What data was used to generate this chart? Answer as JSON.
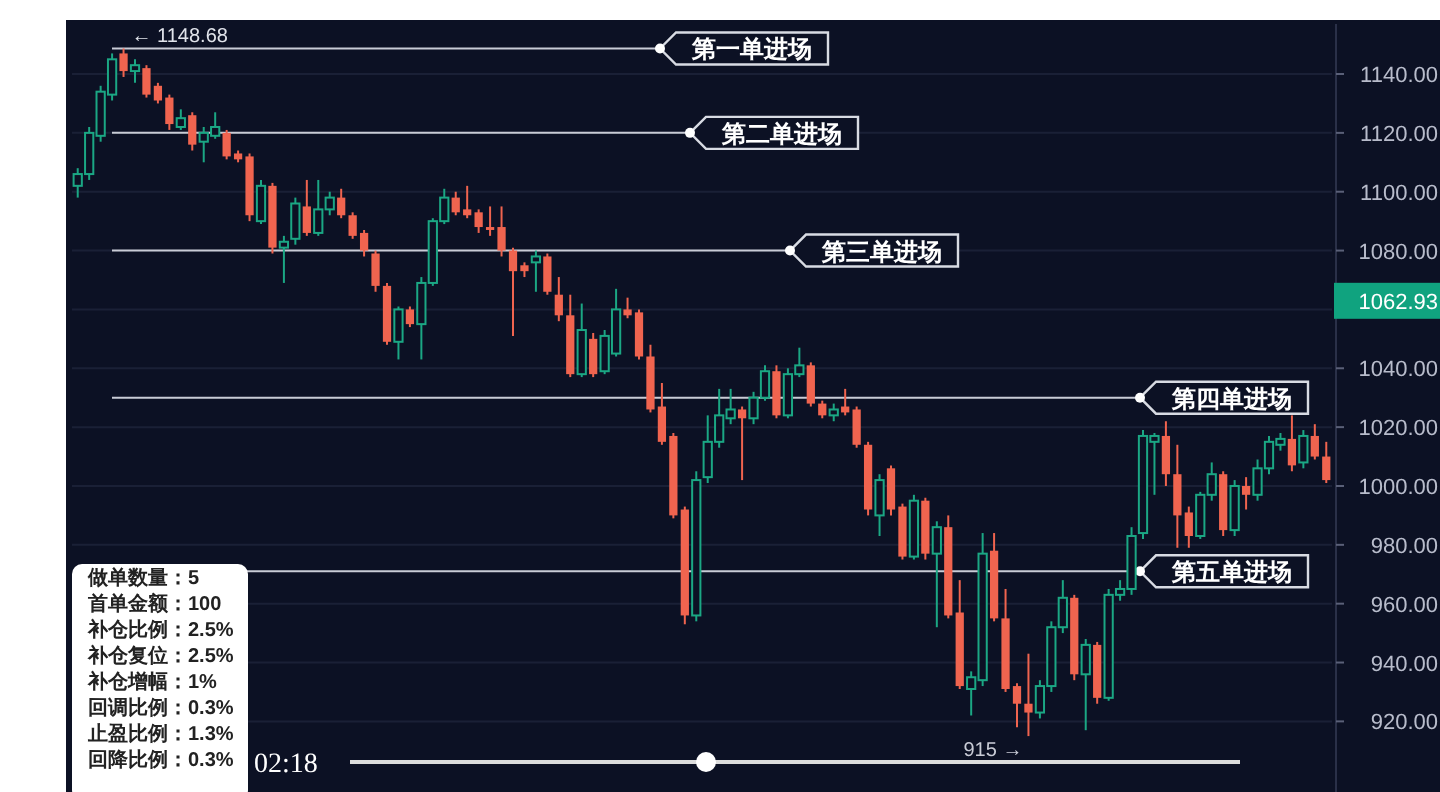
{
  "chart_data": {
    "type": "candlestick",
    "categories": [
      null,
      null,
      null,
      null,
      null,
      null,
      null,
      null,
      null,
      null,
      null,
      null,
      null,
      null,
      null,
      null,
      null,
      null,
      null,
      null,
      null,
      null,
      null,
      null,
      null,
      null,
      null,
      null,
      null,
      null,
      null,
      null,
      null,
      null,
      null,
      null,
      null,
      null,
      null,
      null,
      null,
      null,
      null,
      null,
      null,
      null,
      null,
      null,
      null,
      null,
      null,
      null,
      null,
      null,
      null,
      null,
      null,
      null,
      null,
      null,
      null,
      null,
      null,
      null,
      null,
      null,
      null,
      null,
      null,
      null,
      null,
      null,
      null,
      null,
      null,
      null,
      null,
      null,
      null,
      null,
      null,
      null,
      null,
      null,
      null,
      null,
      null,
      null,
      null,
      null,
      null,
      null,
      null,
      null,
      null,
      null,
      null,
      null,
      null,
      null,
      null,
      null,
      null,
      null,
      null,
      null,
      null,
      null,
      null,
      null
    ],
    "ohlc": [
      [
        1102,
        1108,
        1098,
        1106
      ],
      [
        1106,
        1122,
        1104,
        1120
      ],
      [
        1119,
        1136,
        1117,
        1134
      ],
      [
        1133,
        1147,
        1131,
        1145
      ],
      [
        1147,
        1148.68,
        1139,
        1141
      ],
      [
        1141,
        1145,
        1137,
        1143
      ],
      [
        1142,
        1143,
        1132,
        1133
      ],
      [
        1136,
        1137,
        1130,
        1131
      ],
      [
        1132,
        1133,
        1121,
        1123
      ],
      [
        1122,
        1128,
        1121,
        1125
      ],
      [
        1126,
        1127,
        1114,
        1116
      ],
      [
        1117,
        1122,
        1110,
        1120
      ],
      [
        1119,
        1127,
        1118,
        1122
      ],
      [
        1120,
        1121,
        1111,
        1112
      ],
      [
        1113,
        1114,
        1110,
        1111
      ],
      [
        1112,
        1113,
        1090,
        1092
      ],
      [
        1090,
        1104,
        1089,
        1102
      ],
      [
        1102,
        1103,
        1079,
        1081
      ],
      [
        1081,
        1085,
        1069,
        1083
      ],
      [
        1084,
        1098,
        1082,
        1096
      ],
      [
        1095,
        1104,
        1085,
        1086
      ],
      [
        1086,
        1104,
        1085,
        1094
      ],
      [
        1094,
        1100,
        1092,
        1098
      ],
      [
        1098,
        1101,
        1091,
        1092
      ],
      [
        1092,
        1093,
        1084,
        1085
      ],
      [
        1086,
        1087,
        1078,
        1080
      ],
      [
        1079,
        1080,
        1066,
        1068
      ],
      [
        1068,
        1069,
        1048,
        1049
      ],
      [
        1049,
        1061,
        1043,
        1060
      ],
      [
        1060,
        1061,
        1054,
        1055
      ],
      [
        1055,
        1071,
        1043,
        1069
      ],
      [
        1069,
        1091,
        1068,
        1090
      ],
      [
        1090,
        1101,
        1089,
        1098
      ],
      [
        1098,
        1100,
        1092,
        1093
      ],
      [
        1094,
        1102,
        1091,
        1092
      ],
      [
        1093,
        1094,
        1086,
        1088
      ],
      [
        1088,
        1095,
        1085,
        1087
      ],
      [
        1088,
        1095,
        1078,
        1080
      ],
      [
        1080,
        1081,
        1051,
        1073
      ],
      [
        1075,
        1076,
        1071,
        1073
      ],
      [
        1076,
        1080,
        1066,
        1078
      ],
      [
        1078,
        1079,
        1065,
        1066
      ],
      [
        1065,
        1071,
        1056,
        1058
      ],
      [
        1058,
        1065,
        1037,
        1038
      ],
      [
        1038,
        1062,
        1037,
        1053
      ],
      [
        1050,
        1052,
        1037,
        1038
      ],
      [
        1039,
        1053,
        1038,
        1051
      ],
      [
        1045,
        1067,
        1044,
        1060
      ],
      [
        1060,
        1064,
        1057,
        1058
      ],
      [
        1059,
        1060,
        1043,
        1044
      ],
      [
        1044,
        1048,
        1025,
        1026
      ],
      [
        1027,
        1035,
        1014,
        1015
      ],
      [
        1017,
        1018,
        989,
        990
      ],
      [
        992,
        993,
        953,
        956
      ],
      [
        956,
        1005,
        954,
        1002
      ],
      [
        1003,
        1024,
        1001,
        1015
      ],
      [
        1015,
        1033,
        1013,
        1024
      ],
      [
        1023,
        1033,
        1021,
        1026
      ],
      [
        1026,
        1027,
        1002,
        1023
      ],
      [
        1023,
        1032,
        1021,
        1030
      ],
      [
        1030,
        1041,
        1029,
        1039
      ],
      [
        1039,
        1041,
        1023,
        1024
      ],
      [
        1024,
        1040,
        1023,
        1038
      ],
      [
        1038,
        1047,
        1037,
        1041
      ],
      [
        1041,
        1042,
        1027,
        1028
      ],
      [
        1028,
        1029,
        1023,
        1024
      ],
      [
        1024,
        1028,
        1022,
        1026
      ],
      [
        1027,
        1033,
        1024,
        1025
      ],
      [
        1026,
        1027,
        1013,
        1014
      ],
      [
        1014,
        1015,
        990,
        992
      ],
      [
        990,
        1004,
        983,
        1002
      ],
      [
        1006,
        1007,
        990,
        992
      ],
      [
        993,
        994,
        975,
        976
      ],
      [
        976,
        997,
        975,
        995
      ],
      [
        995,
        996,
        975,
        977
      ],
      [
        977,
        988,
        952,
        986
      ],
      [
        986,
        990,
        955,
        956
      ],
      [
        957,
        968,
        931,
        932
      ],
      [
        931,
        937,
        922,
        935
      ],
      [
        934,
        984,
        932,
        977
      ],
      [
        978,
        984,
        954,
        955
      ],
      [
        955,
        965,
        930,
        931
      ],
      [
        932,
        933,
        918,
        926
      ],
      [
        926,
        943,
        915,
        923
      ],
      [
        923,
        934,
        921,
        932
      ],
      [
        932,
        954,
        930,
        952
      ],
      [
        952,
        968,
        950,
        962
      ],
      [
        962,
        963,
        934,
        936
      ],
      [
        936,
        948,
        917,
        946
      ],
      [
        946,
        947,
        926,
        928
      ],
      [
        928,
        965,
        927,
        963
      ],
      [
        963,
        968,
        961,
        965
      ],
      [
        965,
        986,
        963,
        983
      ],
      [
        984,
        1019,
        982,
        1017
      ],
      [
        1015,
        1018,
        997,
        1017
      ],
      [
        1017,
        1022,
        1000,
        1004
      ],
      [
        1004,
        1014,
        979,
        990
      ],
      [
        991,
        993,
        979,
        983
      ],
      [
        983,
        998,
        982,
        997
      ],
      [
        997,
        1008,
        995,
        1004
      ],
      [
        1004,
        1005,
        983,
        985
      ],
      [
        985,
        1002,
        983,
        1000
      ],
      [
        1000,
        1003,
        992,
        997
      ],
      [
        997,
        1009,
        995,
        1006
      ],
      [
        1006,
        1017,
        1004,
        1015
      ],
      [
        1014,
        1018,
        1012,
        1016
      ],
      [
        1016,
        1024,
        1005,
        1007
      ],
      [
        1008,
        1019,
        1006,
        1017
      ],
      [
        1017,
        1021,
        1009,
        1010
      ],
      [
        1010,
        1015,
        1001,
        1002
      ]
    ],
    "ylim": [
      896,
      1157
    ],
    "yticks": [
      {
        "value": 920,
        "label": "920.00"
      },
      {
        "value": 940,
        "label": "940.00"
      },
      {
        "value": 960,
        "label": "960.00"
      },
      {
        "value": 980,
        "label": "980.00"
      },
      {
        "value": 1000,
        "label": "1000.00"
      },
      {
        "value": 1020,
        "label": "1020.00"
      },
      {
        "value": 1040,
        "label": "1040.00"
      },
      {
        "value": 1060,
        "label": null
      },
      {
        "value": 1080,
        "label": "1080.00"
      },
      {
        "value": 1100,
        "label": "1100.00"
      },
      {
        "value": 1120,
        "label": "1120.00"
      },
      {
        "value": 1140,
        "label": "1140.00"
      }
    ],
    "grid": "y",
    "ref_lines": [
      {
        "axis": "y",
        "value": 1148.68,
        "label": "第一单进场"
      },
      {
        "axis": "y",
        "value": 1120,
        "label": "第二单进场"
      },
      {
        "axis": "y",
        "value": 1080,
        "label": "第三单进场"
      },
      {
        "axis": "y",
        "value": 1030,
        "label": "第四单进场"
      },
      {
        "axis": "y",
        "value": 971,
        "label": "第五单进场"
      }
    ],
    "annotations": [
      {
        "text": "← 1148.68",
        "y": 1148.68
      },
      "915 →",
      "1062.93",
      "做单数量：5",
      "首单金额：100",
      "补仓比例：2.5%",
      "补仓复位：2.5%",
      "补仓增幅：1%",
      "回调比例：0.3%",
      "止盈比例：1.3%",
      "回降比例：0.3%",
      "02:18"
    ]
  }
}
